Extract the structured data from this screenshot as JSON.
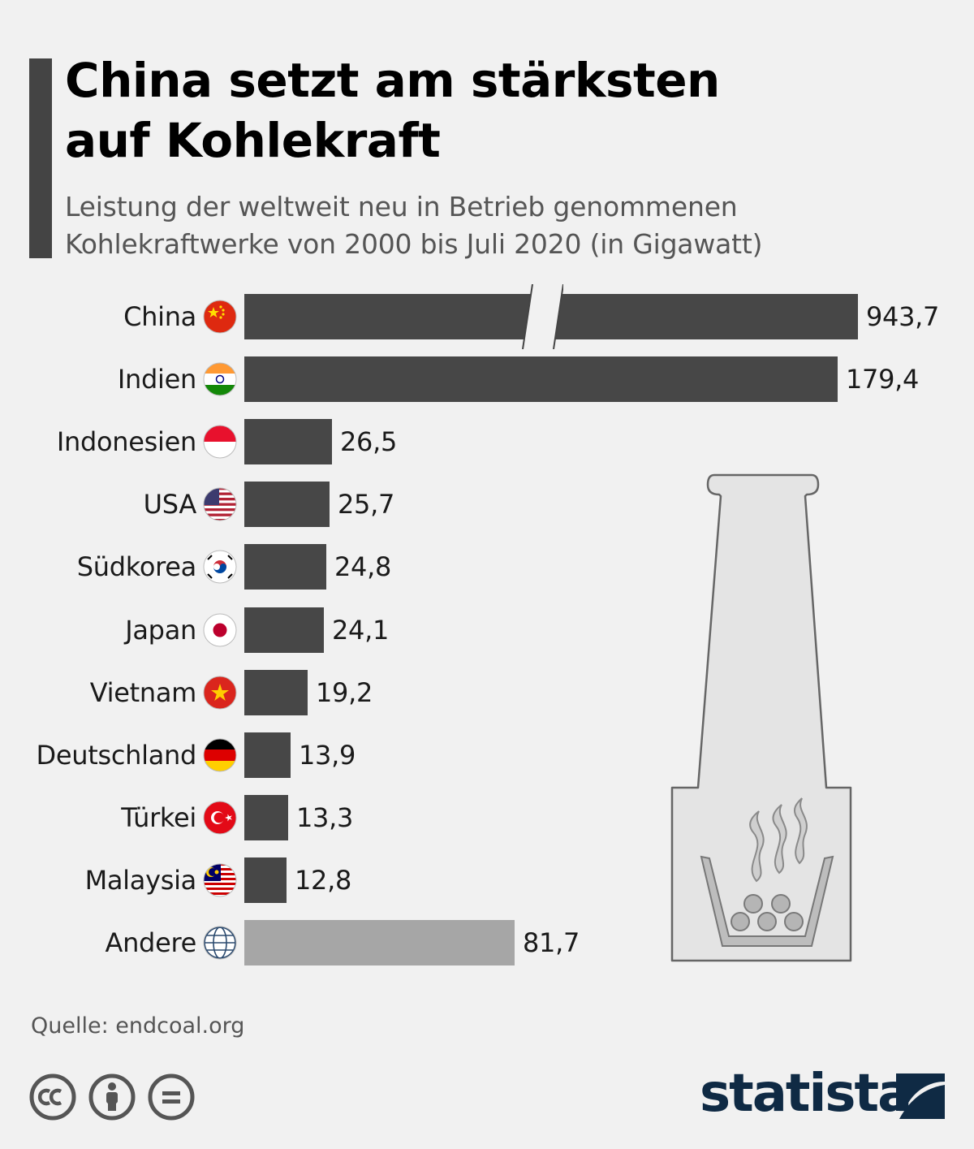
{
  "header": {
    "title_line1": "China setzt am stärksten",
    "title_line2": "auf Kohlekraft",
    "subtitle_line1": "Leistung der weltweit neu in Betrieb genommenen",
    "subtitle_line2": "Kohlekraftwerke von 2000 bis Juli 2020 (in Gigawatt)"
  },
  "chart_data": {
    "type": "bar",
    "orientation": "horizontal",
    "categories": [
      "China",
      "Indien",
      "Indonesien",
      "USA",
      "Südkorea",
      "Japan",
      "Vietnam",
      "Deutschland",
      "Türkei",
      "Malaysia",
      "Andere"
    ],
    "values": [
      943.7,
      179.4,
      26.5,
      25.7,
      24.8,
      24.1,
      19.2,
      13.9,
      13.3,
      12.8,
      81.7
    ],
    "value_labels": [
      "943,7",
      "179,4",
      "26,5",
      "25,7",
      "24,8",
      "24,1",
      "19,2",
      "13,9",
      "13,3",
      "12,8",
      "81,7"
    ],
    "flags": [
      "china-flag-icon",
      "india-flag-icon",
      "indonesia-flag-icon",
      "usa-flag-icon",
      "south-korea-flag-icon",
      "japan-flag-icon",
      "vietnam-flag-icon",
      "germany-flag-icon",
      "turkey-flag-icon",
      "malaysia-flag-icon",
      "globe-icon"
    ],
    "colors": {
      "bar": "#474747",
      "bar_other": "#a6a6a6"
    },
    "axis_break": {
      "category": "China"
    },
    "grid": false,
    "legend": "none"
  },
  "footer": {
    "source": "Quelle: endcoal.org",
    "brand": "statista",
    "license_icons": [
      "cc-icon",
      "by-icon",
      "nd-icon"
    ]
  }
}
